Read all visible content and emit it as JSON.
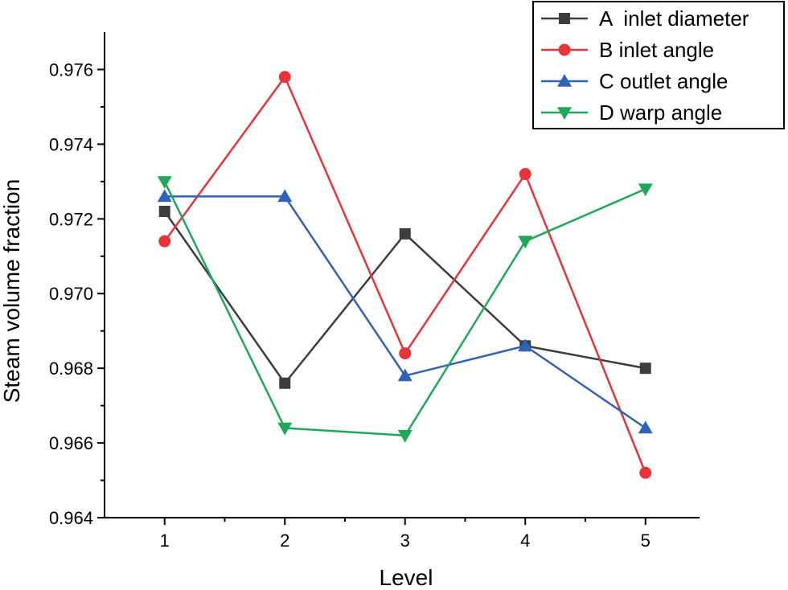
{
  "chart_data": {
    "type": "line",
    "title": "",
    "xlabel": "Level",
    "ylabel": "Steam volume fraction",
    "x": [
      1,
      2,
      3,
      4,
      5
    ],
    "xlim": [
      0.5,
      5.45
    ],
    "ylim": [
      0.964,
      0.977
    ],
    "x_ticks": [
      "1",
      "2",
      "3",
      "4",
      "5"
    ],
    "y_ticks": [
      "0.964",
      "0.966",
      "0.968",
      "0.970",
      "0.972",
      "0.974",
      "0.976"
    ],
    "y_tick_values": [
      0.964,
      0.966,
      0.968,
      0.97,
      0.972,
      0.974,
      0.976
    ],
    "grid": false,
    "legend_position": "top-right",
    "series": [
      {
        "name": "A  inlet diameter",
        "marker": "square",
        "color": "#3d3d3d",
        "values": [
          0.9722,
          0.9676,
          0.9716,
          0.9686,
          0.968
        ]
      },
      {
        "name": "B inlet angle",
        "marker": "circle",
        "color": "#e8333a",
        "values": [
          0.9714,
          0.9758,
          0.9684,
          0.9732,
          0.9652
        ]
      },
      {
        "name": "C outlet angle",
        "marker": "triangle-up",
        "color": "#2f62b8",
        "values": [
          0.9726,
          0.9726,
          0.9678,
          0.9686,
          0.9664
        ]
      },
      {
        "name": "D warp angle",
        "marker": "triangle-down",
        "color": "#1fa85a",
        "values": [
          0.973,
          0.9664,
          0.9662,
          0.9714,
          0.9728
        ]
      }
    ]
  }
}
